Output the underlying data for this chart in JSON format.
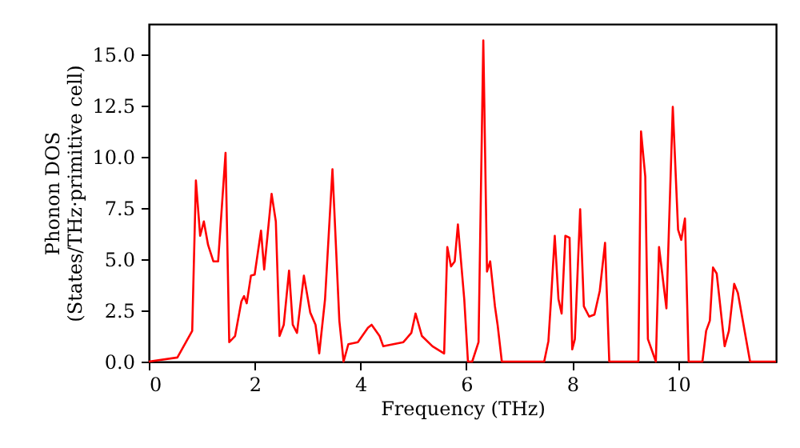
{
  "chart_data": {
    "type": "line",
    "xlabel": "Frequency (THz)",
    "ylabel": "Phonon DOS\n(States/THz·primitive cell)",
    "xlim": [
      0,
      11.85
    ],
    "ylim": [
      0,
      16.5
    ],
    "xticks": [
      0,
      2,
      4,
      6,
      8,
      10
    ],
    "yticks": [
      {
        "value": 0,
        "label": "0.0"
      },
      {
        "value": 2.5,
        "label": "2.5"
      },
      {
        "value": 5,
        "label": "5.0"
      },
      {
        "value": 7.5,
        "label": "7.5"
      },
      {
        "value": 10,
        "label": "10.0"
      },
      {
        "value": 12.5,
        "label": "12.5"
      },
      {
        "value": 15,
        "label": "15.0"
      }
    ],
    "grid": false,
    "line_style": "solid",
    "marker": "none",
    "series": [
      {
        "color": "#ff0000",
        "x": [
          0,
          0.54,
          0.82,
          0.89,
          0.97,
          1.04,
          1.12,
          1.22,
          1.31,
          1.45,
          1.52,
          1.63,
          1.75,
          1.8,
          1.85,
          1.93,
          2.0,
          2.12,
          2.18,
          2.32,
          2.4,
          2.47,
          2.55,
          2.65,
          2.72,
          2.8,
          2.93,
          3.05,
          3.15,
          3.22,
          3.33,
          3.47,
          3.6,
          3.68,
          3.77,
          3.95,
          4.14,
          4.21,
          4.36,
          4.43,
          4.81,
          4.96,
          5.04,
          5.16,
          5.36,
          5.58,
          5.64,
          5.71,
          5.78,
          5.84,
          5.96,
          6.03,
          6.11,
          6.23,
          6.32,
          6.39,
          6.45,
          6.54,
          6.59,
          6.67,
          7.47,
          7.55,
          7.6,
          7.67,
          7.74,
          7.8,
          7.87,
          7.95,
          8.0,
          8.05,
          8.15,
          8.22,
          8.32,
          8.42,
          8.52,
          8.62,
          8.7,
          9.25,
          9.3,
          9.38,
          9.43,
          9.58,
          9.64,
          9.78,
          9.9,
          10.0,
          10.06,
          10.13,
          10.2,
          10.46,
          10.53,
          10.6,
          10.66,
          10.73,
          10.88,
          10.96,
          11.06,
          11.13,
          11.36,
          11.85
        ],
        "values": [
          0,
          0.2,
          1.5,
          8.85,
          6.15,
          6.85,
          5.7,
          4.9,
          4.9,
          10.2,
          0.95,
          1.25,
          2.95,
          3.2,
          2.85,
          4.2,
          4.25,
          6.4,
          4.5,
          8.2,
          6.85,
          1.25,
          1.8,
          4.45,
          1.8,
          1.4,
          4.2,
          2.4,
          1.8,
          0.4,
          3.05,
          9.4,
          2.0,
          0,
          0.85,
          0.95,
          1.65,
          1.8,
          1.25,
          0.75,
          0.95,
          1.4,
          2.35,
          1.25,
          0.75,
          0.4,
          5.6,
          4.65,
          4.9,
          6.7,
          3.05,
          0,
          0,
          0.95,
          15.7,
          4.4,
          4.9,
          2.7,
          1.8,
          0,
          0,
          1.0,
          3.05,
          6.15,
          3.05,
          2.35,
          6.15,
          6.05,
          0.6,
          1.1,
          7.45,
          2.7,
          2.2,
          2.3,
          3.45,
          5.8,
          0,
          0,
          11.25,
          9.05,
          1.1,
          0,
          5.6,
          2.6,
          12.45,
          6.45,
          5.95,
          7.0,
          0,
          0,
          1.5,
          2.0,
          4.6,
          4.3,
          0.75,
          1.5,
          3.8,
          3.35,
          0,
          0
        ]
      }
    ]
  }
}
